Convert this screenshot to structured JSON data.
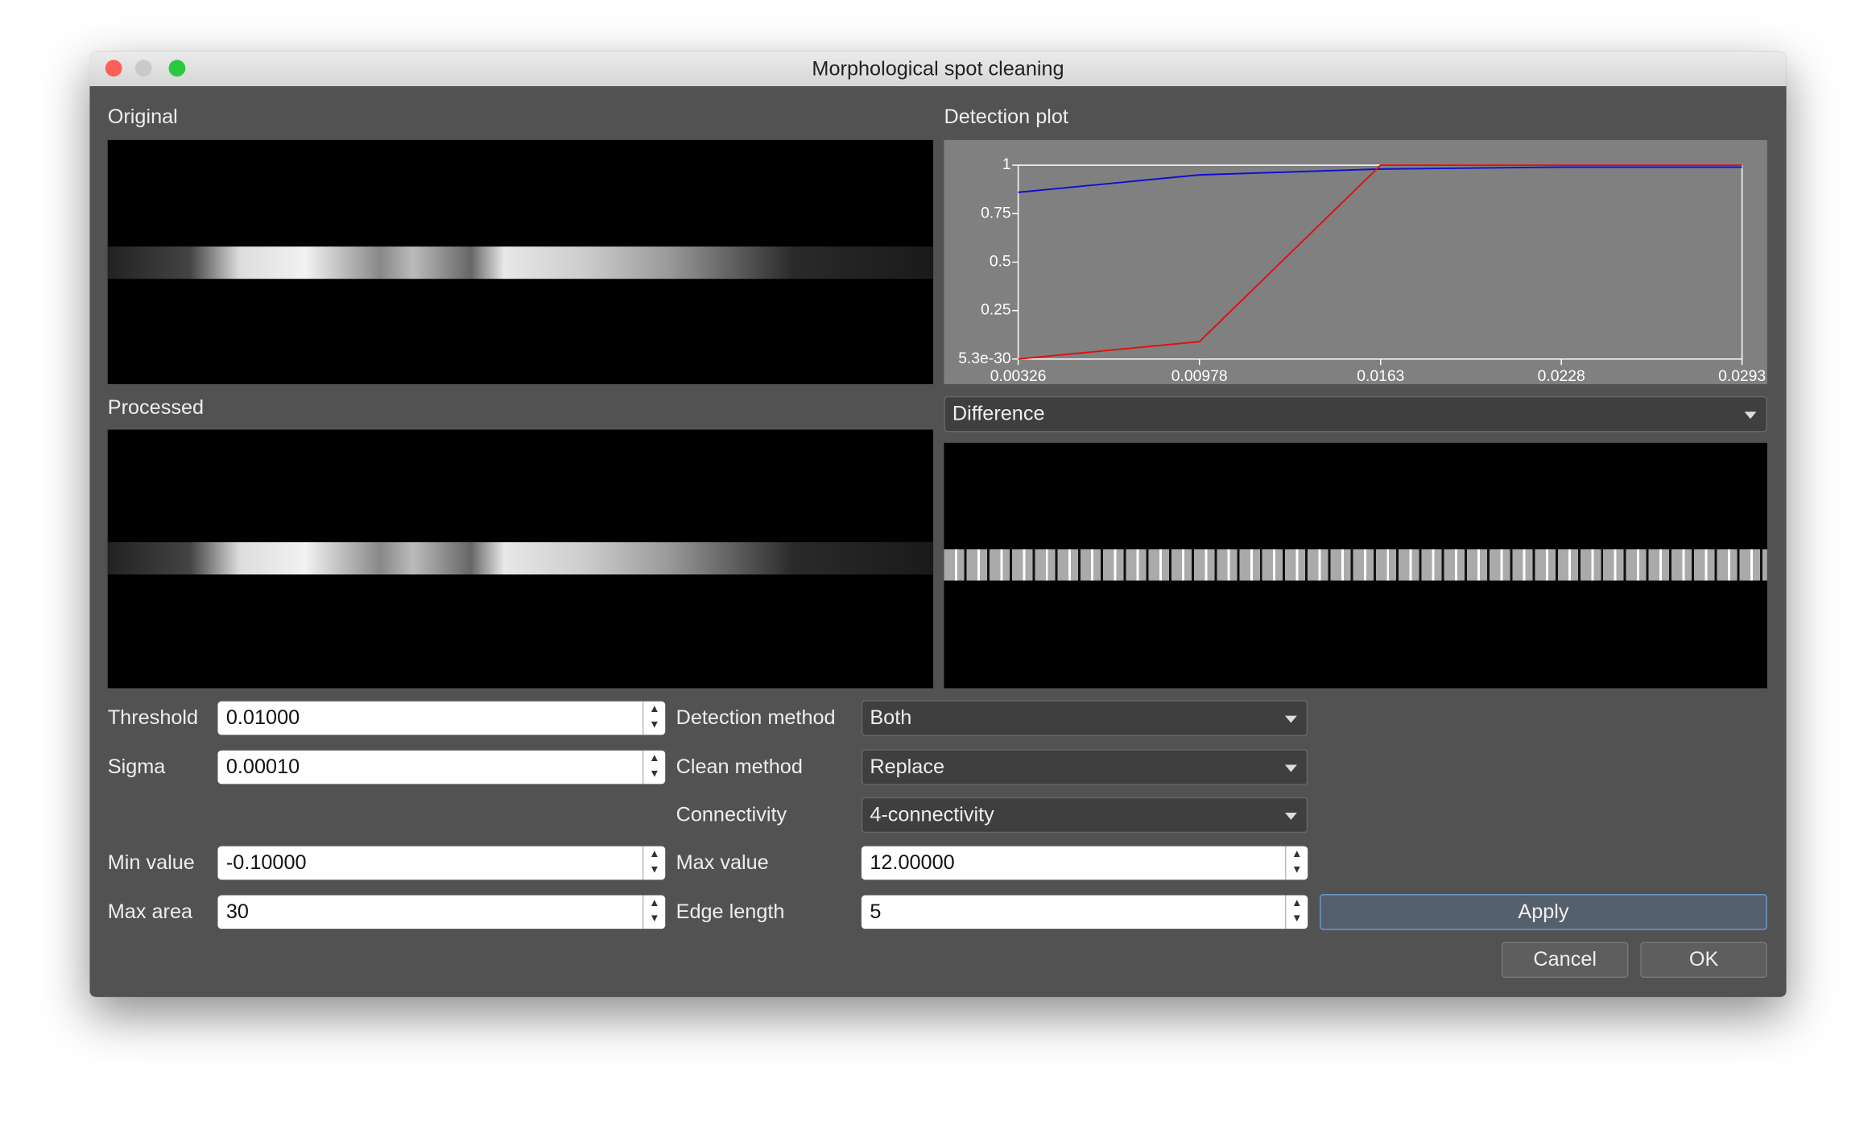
{
  "window": {
    "title": "Morphological spot cleaning"
  },
  "panels": {
    "original": "Original",
    "processed": "Processed",
    "detection_plot": "Detection plot",
    "view_select": "Difference"
  },
  "chart_data": {
    "type": "line",
    "x": [
      0.00326,
      0.00978,
      0.0163,
      0.0228,
      0.0293
    ],
    "series": [
      {
        "color": "#1010d0",
        "values": [
          0.86,
          0.95,
          0.98,
          0.99,
          0.99
        ]
      },
      {
        "color": "#e01010",
        "values": [
          0,
          0.09,
          1,
          1,
          1
        ]
      }
    ],
    "xlim": [
      0.00326,
      0.0293
    ],
    "xticks": [
      0.00326,
      0.00978,
      0.0163,
      0.0228,
      0.0293
    ],
    "ylim": [
      5.3e-30,
      1
    ],
    "yticks": [
      {
        "value": 5.3e-30,
        "label": "5.3e-30"
      },
      0.25,
      0.5,
      0.75,
      1
    ]
  },
  "form": {
    "threshold": {
      "label": "Threshold",
      "value": "0.01000"
    },
    "sigma": {
      "label": "Sigma",
      "value": "0.00010"
    },
    "min_value": {
      "label": "Min value",
      "value": "-0.10000"
    },
    "max_area": {
      "label": "Max area",
      "value": "30"
    },
    "detection_method": {
      "label": "Detection method",
      "value": "Both"
    },
    "clean_method": {
      "label": "Clean method",
      "value": "Replace"
    },
    "connectivity": {
      "label": "Connectivity",
      "value": "4-connectivity"
    },
    "max_value": {
      "label": "Max value",
      "value": "12.00000"
    },
    "edge_length": {
      "label": "Edge length",
      "value": "5"
    }
  },
  "buttons": {
    "apply": "Apply",
    "cancel": "Cancel",
    "ok": "OK"
  }
}
